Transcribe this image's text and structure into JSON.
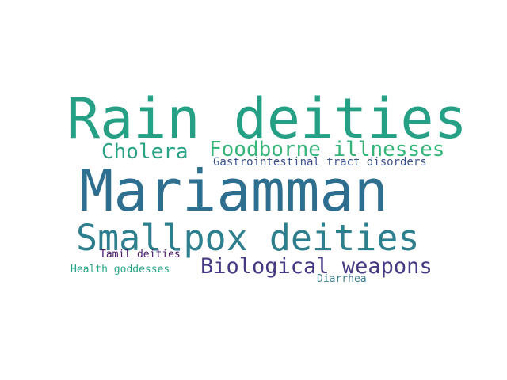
{
  "words": [
    {
      "text": "Rain deities",
      "color": "#25a085"
    },
    {
      "text": "Mariamman",
      "color": "#2e6e8e"
    },
    {
      "text": "Smallpox deities",
      "color": "#2d7f8e"
    },
    {
      "text": "Foodborne illnesses",
      "color": "#35b479"
    },
    {
      "text": "Cholera",
      "color": "#2aa384"
    },
    {
      "text": "Gastrointestinal tract disorders",
      "color": "#3b528b"
    },
    {
      "text": "Biological weapons",
      "color": "#443983"
    },
    {
      "text": "Tamil deities",
      "color": "#48186a"
    },
    {
      "text": "Health goddesses",
      "color": "#26a484"
    },
    {
      "text": "Diarrhea",
      "color": "#3e7f8e"
    }
  ]
}
